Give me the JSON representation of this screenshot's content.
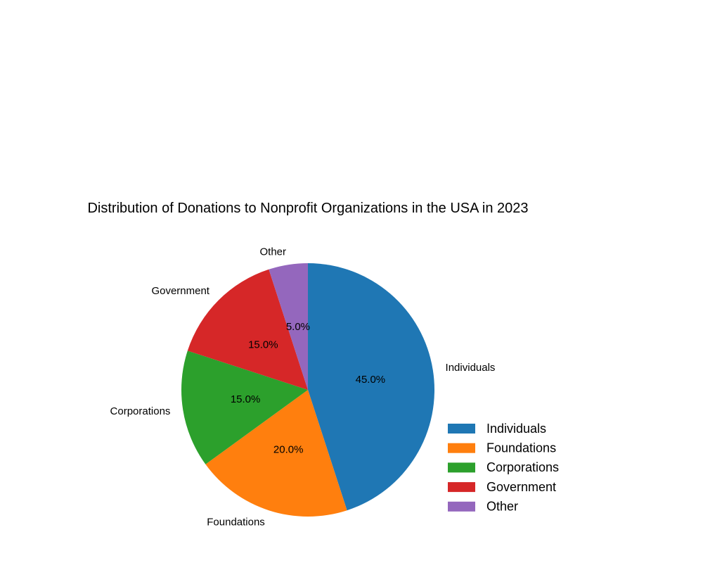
{
  "chart_data": {
    "type": "pie",
    "title": "Distribution of Donations to Nonprofit Organizations in the USA in 2023",
    "categories": [
      "Individuals",
      "Foundations",
      "Corporations",
      "Government",
      "Other"
    ],
    "values": [
      45.0,
      20.0,
      15.0,
      15.0,
      5.0
    ],
    "value_labels": [
      "45.0%",
      "20.0%",
      "15.0%",
      "15.0%",
      "5.0%"
    ],
    "colors": [
      "#1f77b4",
      "#ff7f0e",
      "#2ca02c",
      "#d62728",
      "#9467bd"
    ],
    "start_angle_deg": 90,
    "direction": "clockwise",
    "legend": {
      "entries": [
        "Individuals",
        "Foundations",
        "Corporations",
        "Government",
        "Other"
      ],
      "placement": "lower-right"
    }
  }
}
